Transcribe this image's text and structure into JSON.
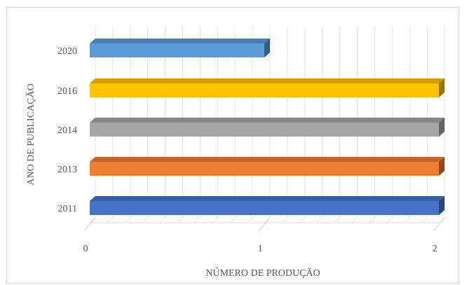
{
  "chart_data": {
    "type": "bar",
    "orientation": "horizontal",
    "three_d": true,
    "categories": [
      "2020",
      "2016",
      "2014",
      "2013",
      "2011"
    ],
    "values": [
      1,
      2,
      2,
      2,
      2
    ],
    "colors": [
      "#5b9bd5",
      "#ffc000",
      "#a5a5a5",
      "#ed7d31",
      "#4472c4"
    ],
    "xlabel": "NÚMERO DE PRODUÇÃO",
    "ylabel": "ANO DE PUBLICAÇÃO",
    "xlim": [
      0,
      2
    ],
    "xticks": [
      "0",
      "1",
      "2"
    ],
    "grid": true,
    "legend": "none"
  }
}
